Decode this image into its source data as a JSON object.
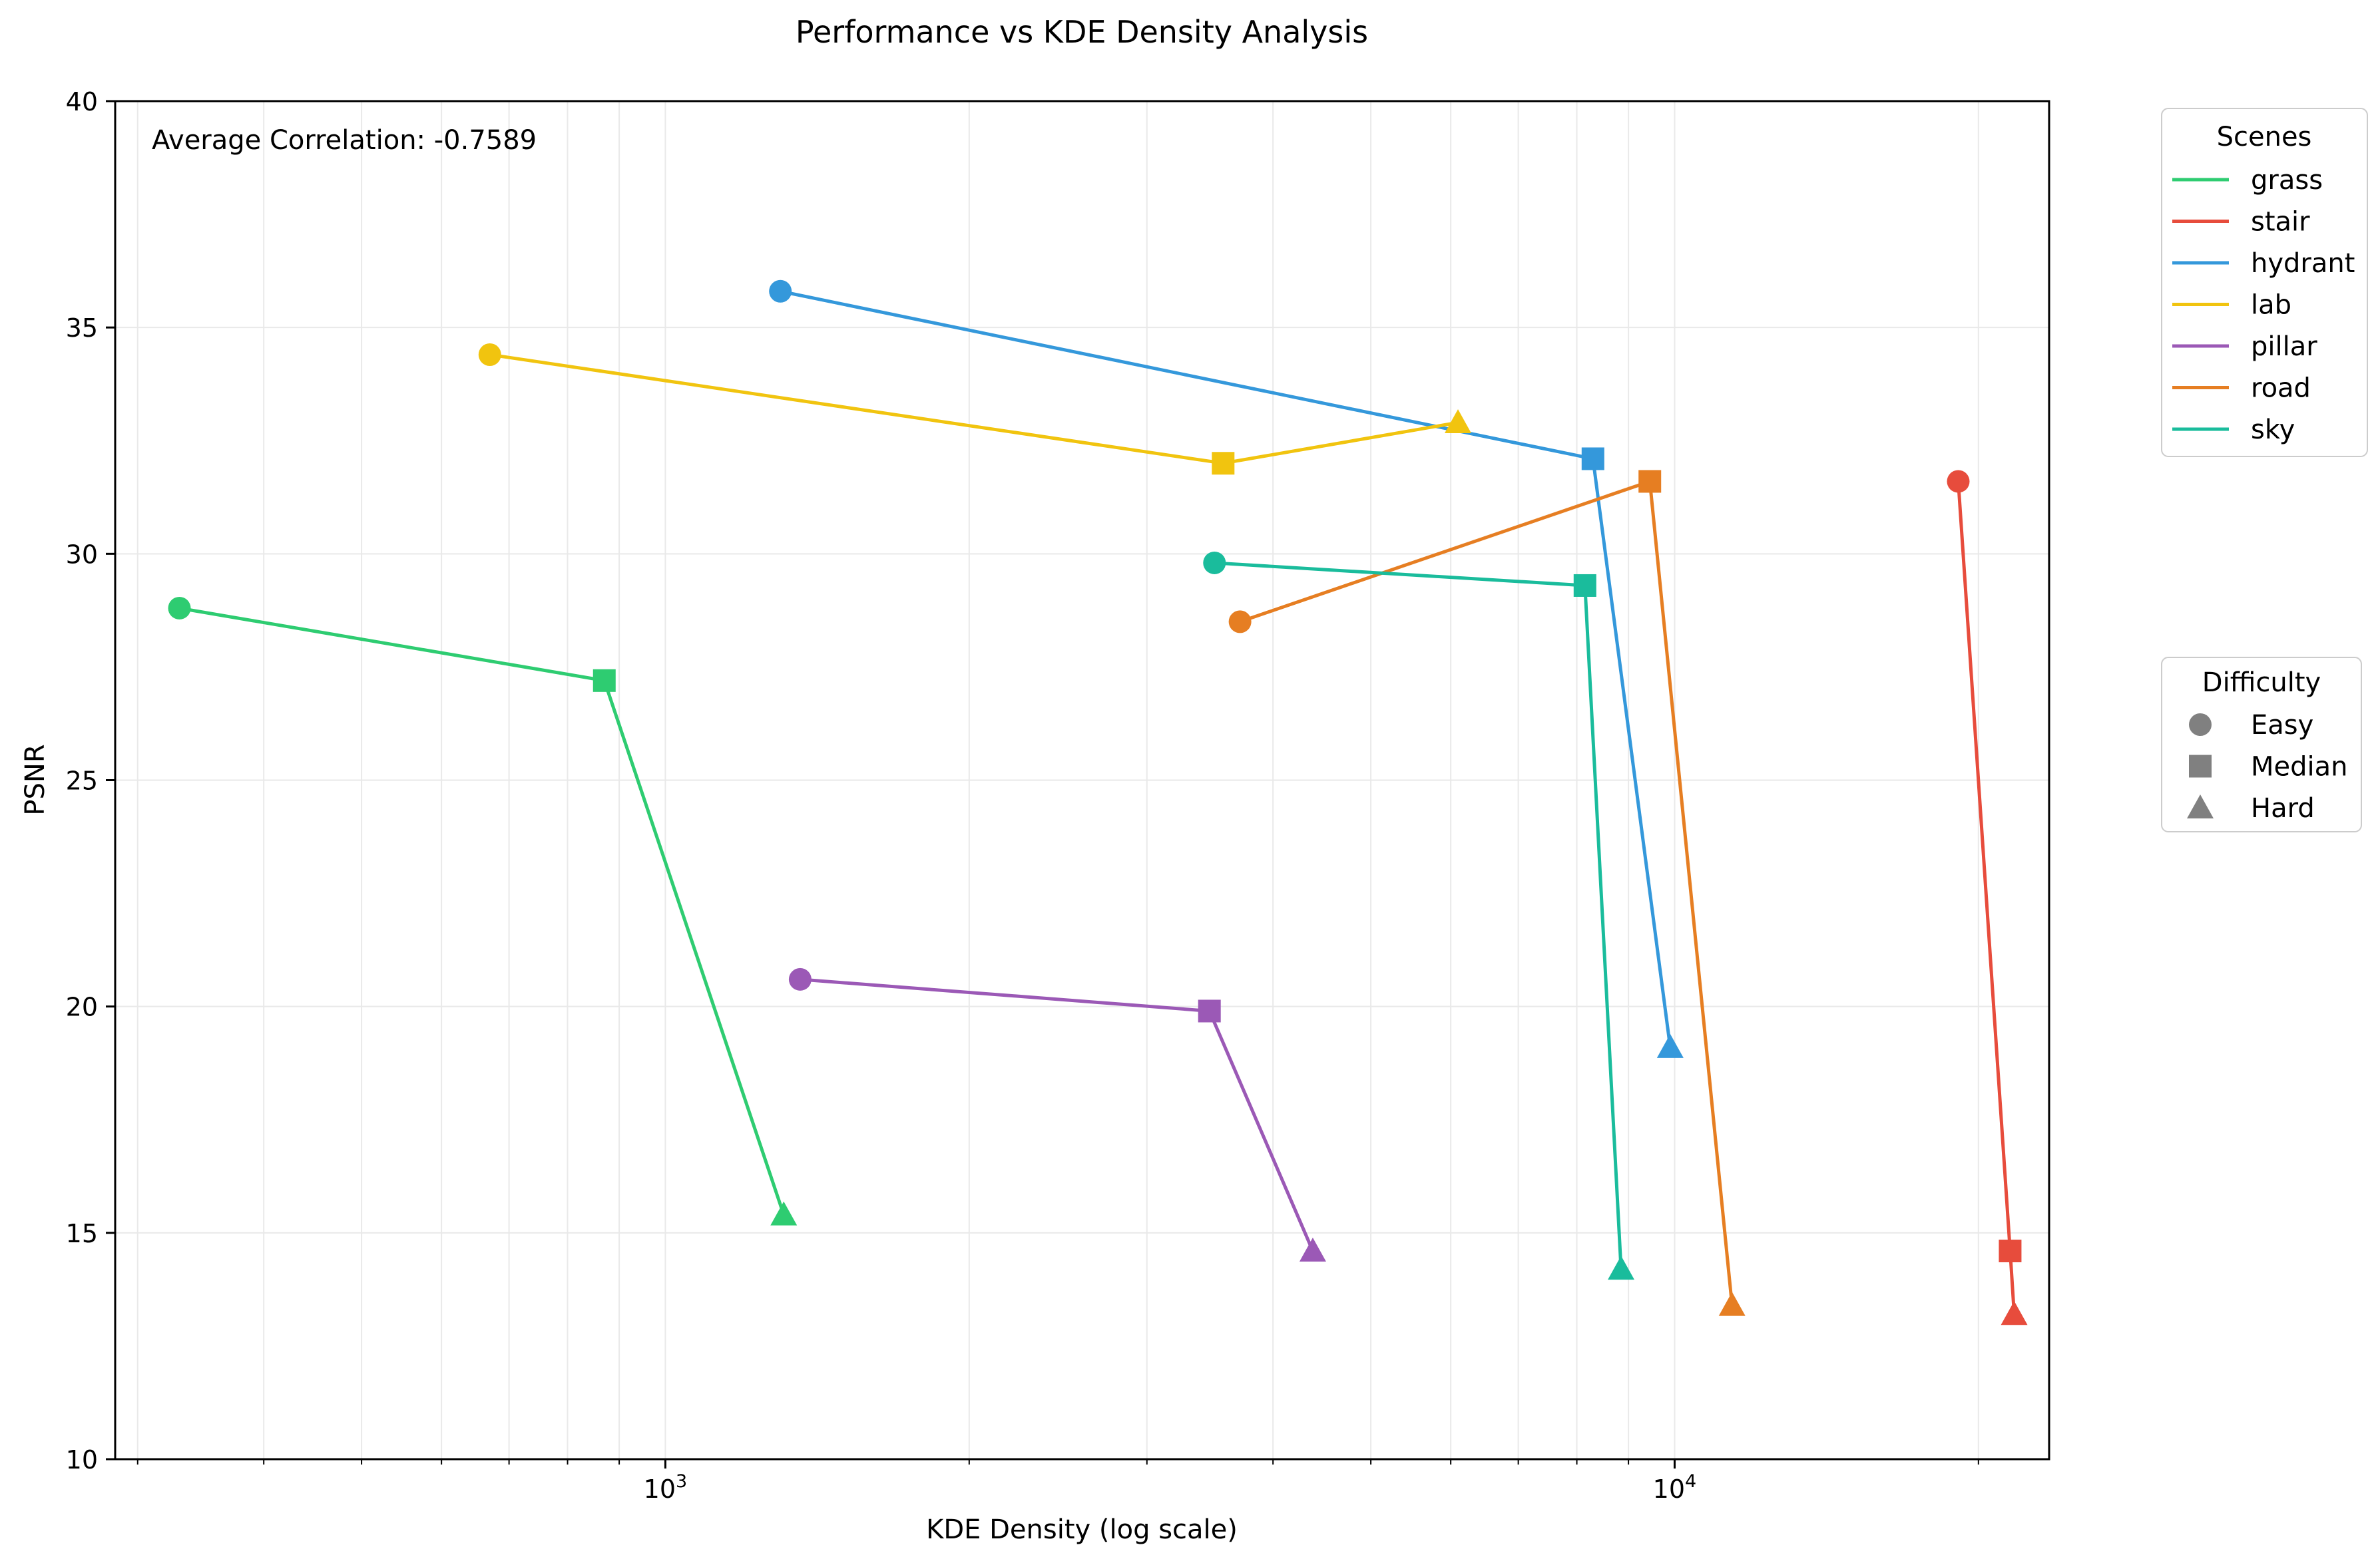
{
  "chart_data": {
    "type": "line",
    "title": "Performance vs KDE Density Analysis",
    "xlabel": "KDE Density (log scale)",
    "ylabel": "PSNR",
    "xscale": "log",
    "xlim": [
      285,
      23500
    ],
    "ylim": [
      10,
      40
    ],
    "xticks": [
      {
        "value": 1000,
        "base": "10",
        "exp": "3"
      },
      {
        "value": 10000,
        "base": "10",
        "exp": "4"
      }
    ],
    "yticks": [
      10,
      15,
      20,
      25,
      30,
      35,
      40
    ],
    "grid": true,
    "annotation": "Average Correlation: -0.7589",
    "difficulty_levels": [
      "Easy",
      "Median",
      "Hard"
    ],
    "series": [
      {
        "name": "grass",
        "color": "#2ecc71",
        "points": [
          [
            330,
            28.8
          ],
          [
            870,
            27.2
          ],
          [
            1310,
            15.4
          ]
        ]
      },
      {
        "name": "stair",
        "color": "#e74c3c",
        "points": [
          [
            19100,
            31.6
          ],
          [
            21500,
            14.6
          ],
          [
            21700,
            13.2
          ]
        ]
      },
      {
        "name": "hydrant",
        "color": "#3498db",
        "points": [
          [
            1300,
            35.8
          ],
          [
            8300,
            32.1
          ],
          [
            9900,
            19.1
          ]
        ]
      },
      {
        "name": "lab",
        "color": "#f1c40f",
        "points": [
          [
            670,
            34.4
          ],
          [
            3570,
            32.0
          ],
          [
            6100,
            32.9
          ]
        ]
      },
      {
        "name": "pillar",
        "color": "#9b59b6",
        "points": [
          [
            1360,
            20.6
          ],
          [
            3460,
            19.9
          ],
          [
            4380,
            14.6
          ]
        ]
      },
      {
        "name": "road",
        "color": "#e67e22",
        "points": [
          [
            3710,
            28.5
          ],
          [
            9450,
            31.6
          ],
          [
            11400,
            13.4
          ]
        ]
      },
      {
        "name": "sky",
        "color": "#1abc9c",
        "points": [
          [
            3500,
            29.8
          ],
          [
            8150,
            29.3
          ],
          [
            8850,
            14.2
          ]
        ]
      }
    ],
    "legends": {
      "scenes_title": "Scenes",
      "difficulty_title": "Difficulty",
      "marker_color": "#808080"
    }
  }
}
